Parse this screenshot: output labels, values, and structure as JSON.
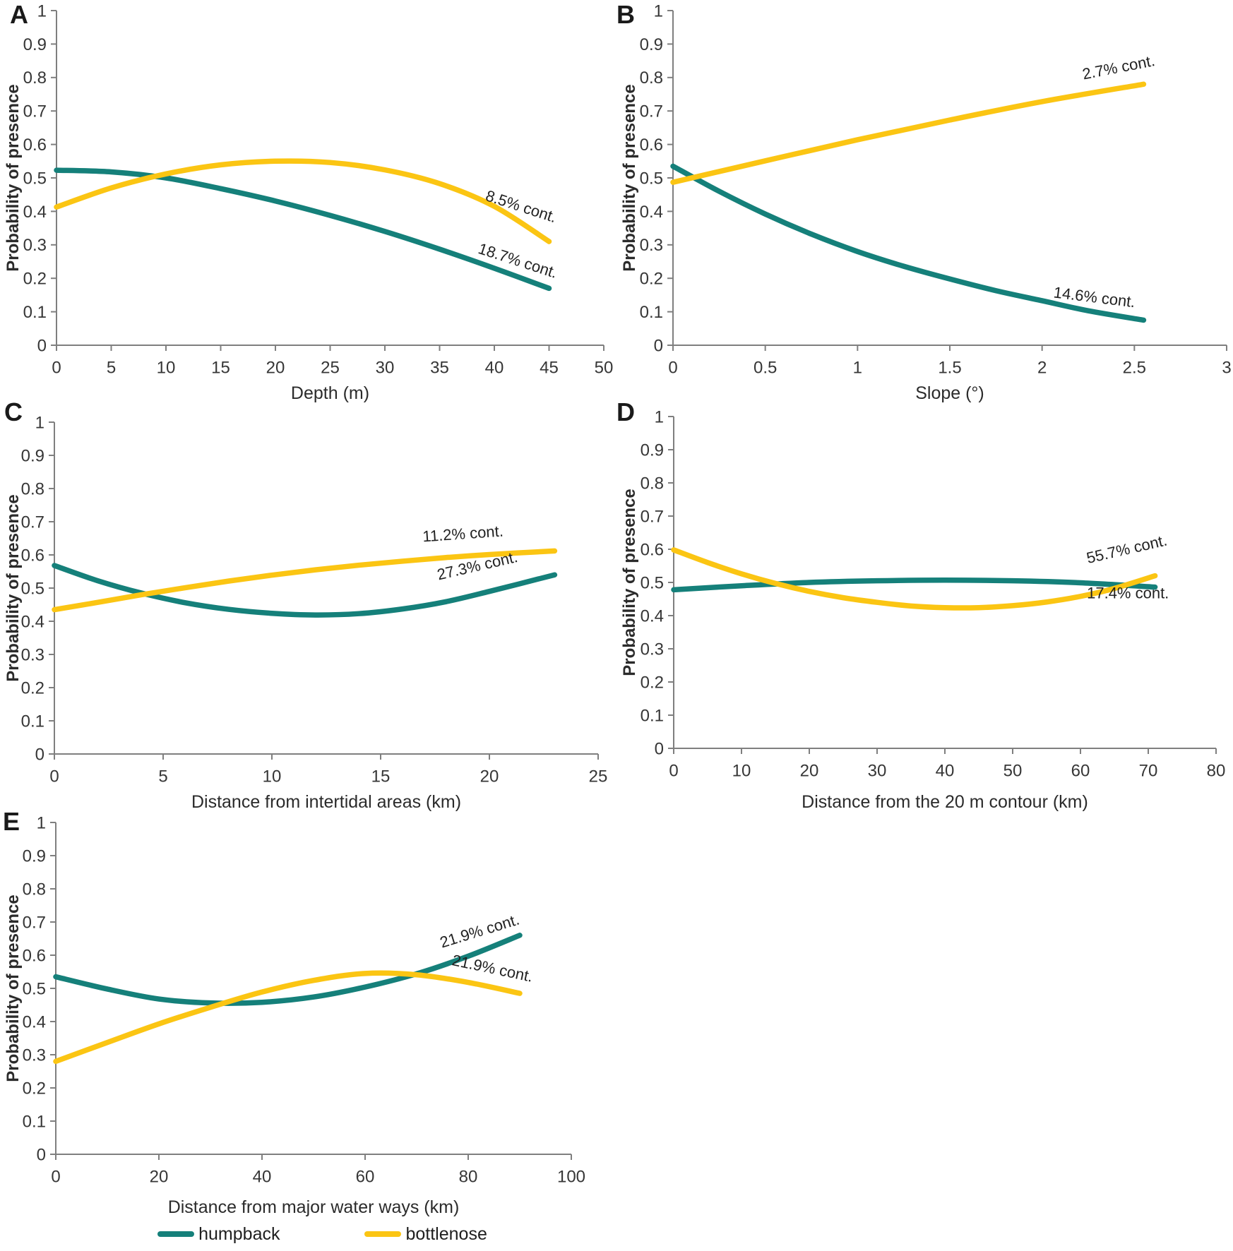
{
  "figure": {
    "ylabel": "Probability of presence",
    "legend": [
      {
        "label": "humpback",
        "color": "#15807A"
      },
      {
        "label": "bottlenose",
        "color": "#FBC513"
      }
    ]
  },
  "chart_data": [
    {
      "type": "line",
      "panel": "A",
      "xlabel": "Depth (m)",
      "ylabel": "Probability of presence",
      "xlim": [
        0,
        50
      ],
      "xticks": [
        0,
        5,
        10,
        15,
        20,
        25,
        30,
        35,
        40,
        45,
        50
      ],
      "ylim": [
        0,
        1
      ],
      "yticks": [
        0,
        0.1,
        0.2,
        0.3,
        0.4,
        0.5,
        0.6,
        0.7,
        0.8,
        0.9,
        1
      ],
      "series": [
        {
          "name": "humpback",
          "color": "#15807A",
          "contribution": "18.7% cont.",
          "x": [
            0,
            5,
            10,
            15,
            20,
            25,
            30,
            35,
            40,
            45
          ],
          "y": [
            0.523,
            0.518,
            0.5,
            0.468,
            0.431,
            0.388,
            0.34,
            0.287,
            0.23,
            0.17
          ]
        },
        {
          "name": "bottlenose",
          "color": "#FBC513",
          "contribution": "8.5% cont.",
          "x": [
            0,
            5,
            10,
            15,
            20,
            25,
            30,
            35,
            40,
            45
          ],
          "y": [
            0.413,
            0.47,
            0.512,
            0.539,
            0.55,
            0.546,
            0.524,
            0.483,
            0.415,
            0.31
          ]
        }
      ],
      "annotations": [
        {
          "text": "8.5% cont.",
          "x": 42.3,
          "y": 0.4,
          "rotate": 18
        },
        {
          "text": "18.7% cont.",
          "x": 42,
          "y": 0.238,
          "rotate": 18
        }
      ]
    },
    {
      "type": "line",
      "panel": "B",
      "xlabel": "Slope (°)",
      "ylabel": "Probability of presence",
      "xlim": [
        0,
        3
      ],
      "xticks": [
        0,
        0.5,
        1,
        1.5,
        2,
        2.5,
        3
      ],
      "ylim": [
        0,
        1
      ],
      "yticks": [
        0,
        0.1,
        0.2,
        0.3,
        0.4,
        0.5,
        0.6,
        0.7,
        0.8,
        0.9,
        1
      ],
      "series": [
        {
          "name": "humpback",
          "color": "#15807A",
          "contribution": "14.6% cont.",
          "x": [
            0,
            0.25,
            0.5,
            0.75,
            1,
            1.25,
            1.5,
            1.75,
            2,
            2.25,
            2.55
          ],
          "y": [
            0.535,
            0.46,
            0.392,
            0.332,
            0.28,
            0.236,
            0.198,
            0.163,
            0.133,
            0.103,
            0.075
          ]
        },
        {
          "name": "bottlenose",
          "color": "#FBC513",
          "contribution": "2.7% cont.",
          "x": [
            0,
            0.5,
            1,
            1.5,
            2,
            2.55
          ],
          "y": [
            0.487,
            0.551,
            0.614,
            0.673,
            0.728,
            0.78
          ]
        }
      ],
      "annotations": [
        {
          "text": "2.7% cont.",
          "x": 2.42,
          "y": 0.815,
          "rotate": -11
        },
        {
          "text": "14.6% cont.",
          "x": 2.28,
          "y": 0.128,
          "rotate": 7
        }
      ]
    },
    {
      "type": "line",
      "panel": "C",
      "xlabel": "Distance from intertidal areas (km)",
      "ylabel": "Probability of presence",
      "xlim": [
        0,
        25
      ],
      "xticks": [
        0,
        5,
        10,
        15,
        20,
        25
      ],
      "ylim": [
        0,
        1
      ],
      "yticks": [
        0,
        0.1,
        0.2,
        0.3,
        0.4,
        0.5,
        0.6,
        0.7,
        0.8,
        0.9,
        1
      ],
      "series": [
        {
          "name": "humpback",
          "color": "#15807A",
          "contribution": "27.3% cont.",
          "x": [
            0,
            2,
            4,
            6,
            8,
            10,
            12,
            14,
            16,
            18,
            20,
            23
          ],
          "y": [
            0.568,
            0.522,
            0.485,
            0.456,
            0.436,
            0.424,
            0.419,
            0.423,
            0.437,
            0.459,
            0.49,
            0.54
          ]
        },
        {
          "name": "bottlenose",
          "color": "#FBC513",
          "contribution": "11.2% cont.",
          "x": [
            0,
            2,
            4,
            6,
            8,
            10,
            12,
            14,
            16,
            18,
            20,
            23
          ],
          "y": [
            0.435,
            0.457,
            0.48,
            0.501,
            0.521,
            0.539,
            0.555,
            0.569,
            0.581,
            0.592,
            0.601,
            0.612
          ]
        }
      ],
      "annotations": [
        {
          "text": "11.2% cont.",
          "x": 18.8,
          "y": 0.648,
          "rotate": -4
        },
        {
          "text": "27.3% cont.",
          "x": 19.5,
          "y": 0.552,
          "rotate": -13
        }
      ]
    },
    {
      "type": "line",
      "panel": "D",
      "xlabel": "Distance from the 20 m contour (km)",
      "ylabel": "Probability of presence",
      "xlim": [
        0,
        80
      ],
      "xticks": [
        0,
        10,
        20,
        30,
        40,
        50,
        60,
        70,
        80
      ],
      "ylim": [
        0,
        1
      ],
      "yticks": [
        0,
        0.1,
        0.2,
        0.3,
        0.4,
        0.5,
        0.6,
        0.7,
        0.8,
        0.9,
        1
      ],
      "series": [
        {
          "name": "humpback",
          "color": "#15807A",
          "contribution": "17.4% cont.",
          "x": [
            0,
            10,
            20,
            30,
            40,
            50,
            60,
            71
          ],
          "y": [
            0.478,
            0.49,
            0.5,
            0.505,
            0.507,
            0.505,
            0.499,
            0.486
          ]
        },
        {
          "name": "bottlenose",
          "color": "#FBC513",
          "contribution": "55.7% cont.",
          "x": [
            0,
            5,
            10,
            15,
            20,
            25,
            30,
            35,
            40,
            45,
            50,
            55,
            60,
            65,
            71
          ],
          "y": [
            0.598,
            0.56,
            0.526,
            0.497,
            0.473,
            0.454,
            0.44,
            0.429,
            0.424,
            0.424,
            0.43,
            0.441,
            0.458,
            0.482,
            0.52
          ]
        }
      ],
      "annotations": [
        {
          "text": "55.7% cont.",
          "x": 67,
          "y": 0.585,
          "rotate": -13
        },
        {
          "text": "17.4% cont.",
          "x": 67,
          "y": 0.452,
          "rotate": 0
        }
      ]
    },
    {
      "type": "line",
      "panel": "E",
      "xlabel": "Distance from major water ways (km)",
      "ylabel": "Probability of presence",
      "xlim": [
        0,
        100
      ],
      "xticks": [
        0,
        20,
        40,
        60,
        80,
        100
      ],
      "ylim": [
        0,
        1
      ],
      "yticks": [
        0,
        0.1,
        0.2,
        0.3,
        0.4,
        0.5,
        0.6,
        0.7,
        0.8,
        0.9,
        1
      ],
      "series": [
        {
          "name": "humpback",
          "color": "#15807A",
          "contribution": "21.9% cont.",
          "x": [
            0,
            10,
            20,
            30,
            40,
            50,
            60,
            70,
            80,
            90
          ],
          "y": [
            0.535,
            0.498,
            0.468,
            0.456,
            0.458,
            0.474,
            0.504,
            0.544,
            0.597,
            0.66
          ]
        },
        {
          "name": "bottlenose",
          "color": "#FBC513",
          "contribution": "21.9% cont.",
          "x": [
            0,
            10,
            20,
            30,
            40,
            50,
            60,
            70,
            80,
            90
          ],
          "y": [
            0.28,
            0.337,
            0.393,
            0.443,
            0.489,
            0.524,
            0.545,
            0.541,
            0.518,
            0.485
          ]
        }
      ],
      "annotations": [
        {
          "text": "21.9% cont.",
          "x": 82.5,
          "y": 0.658,
          "rotate": -17
        },
        {
          "text": "21.9% cont.",
          "x": 84.5,
          "y": 0.545,
          "rotate": 12
        }
      ]
    }
  ]
}
